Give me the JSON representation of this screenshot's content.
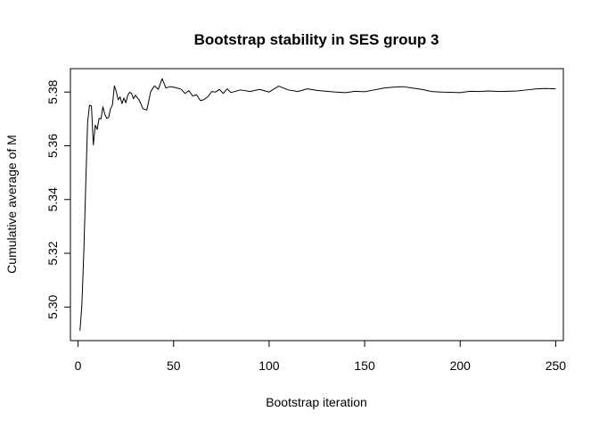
{
  "chart_data": {
    "type": "line",
    "title": "Bootstrap stability in SES group 3",
    "xlabel": "Bootstrap iteration",
    "ylabel": "Cumulative average of M",
    "xlim": [
      -4,
      254
    ],
    "ylim": [
      5.2875,
      5.3887
    ],
    "xticks": [
      0,
      50,
      100,
      150,
      200,
      250
    ],
    "yticks": [
      5.3,
      5.32,
      5.34,
      5.36,
      5.38
    ],
    "xtick_labels": [
      "0",
      "50",
      "100",
      "150",
      "200",
      "250"
    ],
    "ytick_labels": [
      "5.30",
      "5.32",
      "5.34",
      "5.36",
      "5.38"
    ],
    "line_color": "#000000",
    "series": [
      {
        "name": "Cumulative average of M",
        "x": [
          1,
          2,
          3,
          4,
          5,
          6,
          7,
          8,
          9,
          10,
          11,
          12,
          13,
          14,
          15,
          16,
          17,
          18,
          19,
          20,
          21,
          22,
          23,
          24,
          25,
          26,
          27,
          28,
          29,
          30,
          32,
          34,
          36,
          38,
          40,
          42,
          44,
          46,
          48,
          50,
          52,
          54,
          56,
          58,
          60,
          62,
          64,
          66,
          68,
          70,
          72,
          74,
          76,
          78,
          80,
          85,
          90,
          95,
          100,
          105,
          110,
          115,
          120,
          125,
          130,
          135,
          140,
          145,
          150,
          155,
          160,
          165,
          170,
          175,
          180,
          185,
          190,
          195,
          200,
          205,
          210,
          215,
          220,
          225,
          230,
          235,
          240,
          245,
          250
        ],
        "values": [
          5.2912,
          5.3008,
          5.3202,
          5.3451,
          5.3688,
          5.3751,
          5.3748,
          5.3603,
          5.3677,
          5.3661,
          5.3702,
          5.37,
          5.3745,
          5.3718,
          5.3702,
          5.3705,
          5.3738,
          5.3752,
          5.3823,
          5.3802,
          5.3771,
          5.3782,
          5.3757,
          5.3778,
          5.376,
          5.3788,
          5.3799,
          5.3795,
          5.3775,
          5.3788,
          5.377,
          5.3738,
          5.3733,
          5.3801,
          5.3823,
          5.381,
          5.385,
          5.3815,
          5.382,
          5.3818,
          5.3815,
          5.381,
          5.3795,
          5.3805,
          5.3785,
          5.379,
          5.3768,
          5.3772,
          5.3783,
          5.3802,
          5.38,
          5.381,
          5.3795,
          5.3812,
          5.3798,
          5.3808,
          5.3802,
          5.381,
          5.38,
          5.3822,
          5.3808,
          5.3802,
          5.3812,
          5.3806,
          5.3803,
          5.38,
          5.3798,
          5.3803,
          5.3801,
          5.3808,
          5.3815,
          5.3818,
          5.382,
          5.3815,
          5.381,
          5.3802,
          5.38,
          5.3799,
          5.3798,
          5.3803,
          5.3802,
          5.3804,
          5.3802,
          5.3803,
          5.3804,
          5.3808,
          5.3812,
          5.3813,
          5.3812
        ]
      }
    ]
  }
}
